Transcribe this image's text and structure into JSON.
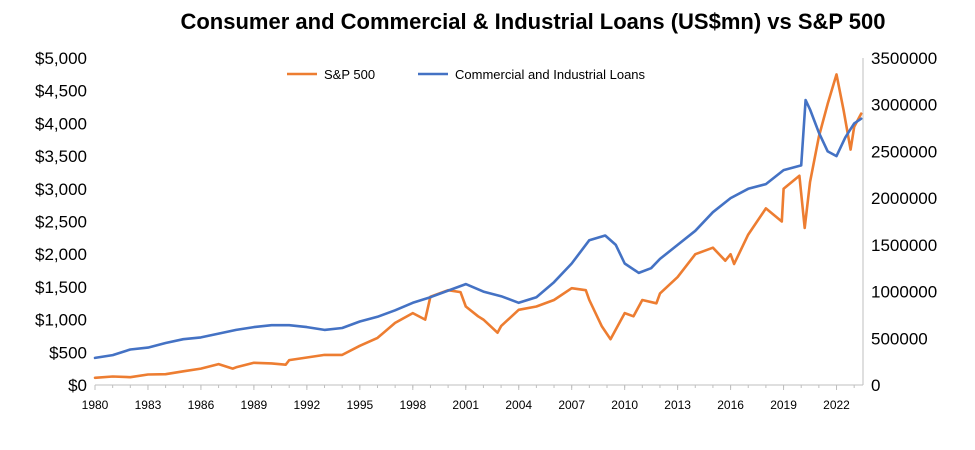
{
  "chart_data": {
    "type": "line",
    "title": "Consumer and Commercial & Industrial Loans (US$mn) vs S&P 500",
    "xlabel": "",
    "ylabel_left": "",
    "ylabel_right": "",
    "xlim": [
      1980,
      2023.5
    ],
    "x_ticks": [
      "1980",
      "1983",
      "1986",
      "1989",
      "1992",
      "1995",
      "1998",
      "2001",
      "2004",
      "2007",
      "2010",
      "2013",
      "2016",
      "2019",
      "2022"
    ],
    "ylim_left": [
      0,
      5000
    ],
    "y_ticks_left": [
      "$0",
      "$500",
      "$1,000",
      "$1,500",
      "$2,000",
      "$2,500",
      "$3,000",
      "$3,500",
      "$4,000",
      "$4,500",
      "$5,000"
    ],
    "ylim_right": [
      0,
      3500000
    ],
    "y_ticks_right": [
      "0",
      "500000",
      "1000000",
      "1500000",
      "2000000",
      "2500000",
      "3000000",
      "3500000"
    ],
    "grid": false,
    "legend_position": "top-center",
    "series": [
      {
        "name": "S&P 500",
        "axis": "left",
        "color": "#ED7D31",
        "x": [
          1980,
          1981,
          1982,
          1983,
          1984,
          1985,
          1986,
          1987,
          1987.8,
          1988,
          1989,
          1990,
          1990.8,
          1991,
          1992,
          1993,
          1994,
          1995,
          1996,
          1997,
          1998,
          1998.7,
          1999,
          2000,
          2000.7,
          2001,
          2001.7,
          2002,
          2002.8,
          2003,
          2004,
          2005,
          2006,
          2007,
          2007.8,
          2008,
          2008.7,
          2009.2,
          2010,
          2010.5,
          2011,
          2011.8,
          2012,
          2013,
          2014,
          2015,
          2015.7,
          2016,
          2016.2,
          2017,
          2018,
          2018.9,
          2019,
          2019.9,
          2020.2,
          2020.5,
          2021,
          2021.5,
          2022,
          2022.4,
          2022.8,
          2023,
          2023.4
        ],
        "y": [
          110,
          130,
          120,
          160,
          165,
          210,
          250,
          320,
          250,
          270,
          340,
          330,
          310,
          380,
          420,
          460,
          460,
          600,
          720,
          950,
          1100,
          1000,
          1350,
          1450,
          1420,
          1200,
          1050,
          1000,
          800,
          900,
          1150,
          1200,
          1300,
          1480,
          1450,
          1300,
          900,
          700,
          1100,
          1050,
          1300,
          1250,
          1400,
          1650,
          2000,
          2100,
          1900,
          2000,
          1850,
          2300,
          2700,
          2500,
          3000,
          3200,
          2400,
          3100,
          3800,
          4300,
          4750,
          4200,
          3600,
          3950,
          4150
        ]
      },
      {
        "name": "Commercial and Industrial Loans",
        "axis": "right",
        "color": "#4472C4",
        "x": [
          1980,
          1981,
          1982,
          1983,
          1984,
          1985,
          1986,
          1987,
          1988,
          1989,
          1990,
          1991,
          1992,
          1993,
          1994,
          1995,
          1996,
          1997,
          1998,
          1999,
          2000,
          2001,
          2002,
          2003,
          2004,
          2005,
          2006,
          2007,
          2008,
          2008.9,
          2009.5,
          2010,
          2010.8,
          2011.5,
          2012,
          2013,
          2014,
          2015,
          2016,
          2017,
          2018,
          2019,
          2020,
          2020.25,
          2020.5,
          2021,
          2021.5,
          2022,
          2022.5,
          2023,
          2023.4
        ],
        "y": [
          290000,
          320000,
          380000,
          400000,
          450000,
          490000,
          510000,
          550000,
          590000,
          620000,
          640000,
          640000,
          620000,
          590000,
          610000,
          680000,
          730000,
          800000,
          880000,
          940000,
          1010000,
          1080000,
          1000000,
          950000,
          880000,
          940000,
          1100000,
          1300000,
          1550000,
          1600000,
          1500000,
          1300000,
          1200000,
          1250000,
          1350000,
          1500000,
          1650000,
          1850000,
          2000000,
          2100000,
          2150000,
          2300000,
          2350000,
          3050000,
          2950000,
          2700000,
          2500000,
          2450000,
          2650000,
          2800000,
          2850000
        ]
      }
    ]
  }
}
